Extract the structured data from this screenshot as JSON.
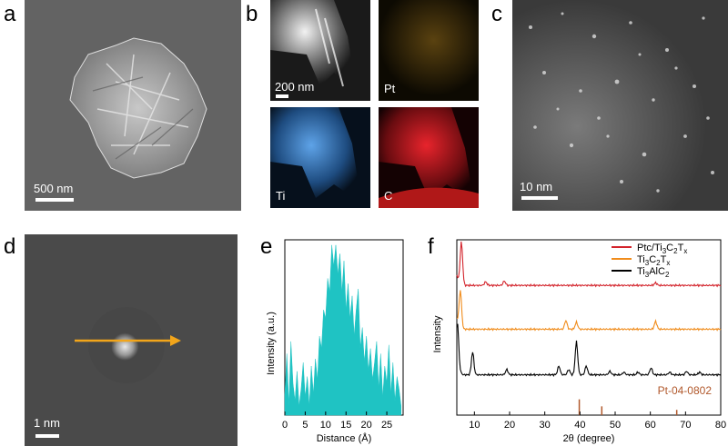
{
  "panels": {
    "a": {
      "letter": "a",
      "scale_label": "500 nm"
    },
    "b": {
      "letter": "b",
      "scale_label": "200 nm",
      "maps": [
        "Pt",
        "Ti",
        "C"
      ]
    },
    "c": {
      "letter": "c",
      "scale_label": "10 nm"
    },
    "d": {
      "letter": "d",
      "scale_label": "1 nm"
    },
    "e": {
      "letter": "e"
    },
    "f": {
      "letter": "f"
    }
  },
  "colors": {
    "ptc": "#d3242c",
    "ti3c2": "#f08c1c",
    "ti3alc2": "#000000",
    "ref": "#b1582b",
    "profile": "#1fc3c3",
    "arrow": "#f2a51a"
  },
  "chart_data": [
    {
      "type": "area",
      "panel": "e",
      "xlabel": "Distance (Å)",
      "ylabel": "Intensity (a.u.)",
      "xlim": [
        0,
        29
      ],
      "xticks": [
        0,
        5,
        10,
        15,
        20,
        25
      ],
      "x": [
        0,
        0.5,
        1,
        1.5,
        2,
        2.5,
        3,
        3.5,
        4,
        4.5,
        5,
        5.5,
        6,
        6.5,
        7,
        7.5,
        8,
        8.5,
        9,
        9.5,
        10,
        10.5,
        11,
        11.5,
        12,
        12.5,
        13,
        13.5,
        14,
        14.5,
        15,
        15.5,
        16,
        16.5,
        17,
        17.5,
        18,
        18.5,
        19,
        19.5,
        20,
        20.5,
        21,
        21.5,
        22,
        22.5,
        23,
        23.5,
        24,
        24.5,
        25,
        25.5,
        26,
        26.5,
        27,
        27.5,
        28,
        28.5
      ],
      "y": [
        0.12,
        0.35,
        0.05,
        0.42,
        0.18,
        0.08,
        0.25,
        0.05,
        0.15,
        0.3,
        0.1,
        0.22,
        0.05,
        0.28,
        0.12,
        0.32,
        0.2,
        0.45,
        0.38,
        0.6,
        0.55,
        0.78,
        0.7,
        0.97,
        0.85,
        0.97,
        0.8,
        0.92,
        0.7,
        0.88,
        0.6,
        0.75,
        0.55,
        0.68,
        0.45,
        0.6,
        0.72,
        0.38,
        0.5,
        0.3,
        0.45,
        0.25,
        0.38,
        0.2,
        0.3,
        0.42,
        0.15,
        0.35,
        0.1,
        0.28,
        0.18,
        0.4,
        0.12,
        0.3,
        0.08,
        0.22,
        0.15,
        0.05
      ]
    },
    {
      "type": "line",
      "panel": "f",
      "xlabel": "2θ (degree)",
      "ylabel": "Intensity",
      "xlim": [
        5,
        80
      ],
      "xticks": [
        10,
        20,
        30,
        40,
        50,
        60,
        70,
        80
      ],
      "legend_position": "top-right",
      "legend": [
        {
          "base": "Ptc/Ti",
          "sub1": "3",
          "mid": "C",
          "sub2": "2",
          "mid2": "T",
          "sub3": "x",
          "color_key": "ptc"
        },
        {
          "base": "Ti",
          "sub1": "3",
          "mid": "C",
          "sub2": "2",
          "mid2": "T",
          "sub3": "x",
          "color_key": "ti3c2"
        },
        {
          "base": "Ti",
          "sub1": "3",
          "mid": "AlC",
          "sub2": "2",
          "mid2": "",
          "sub3": "",
          "color_key": "ti3alc2"
        }
      ],
      "series": [
        {
          "color_key": "ptc",
          "baseline": 0.74,
          "peaks": [
            [
              6.3,
              0.98
            ],
            [
              13.2,
              0.76
            ],
            [
              18.5,
              0.765
            ],
            [
              61.5,
              0.755
            ]
          ]
        },
        {
          "color_key": "ti3c2",
          "baseline": 0.49,
          "peaks": [
            [
              6.0,
              0.7
            ],
            [
              36.0,
              0.54
            ],
            [
              39.0,
              0.53
            ],
            [
              61.5,
              0.535
            ]
          ]
        },
        {
          "color_key": "ti3alc2",
          "baseline": 0.23,
          "peaks": [
            [
              5.2,
              0.48
            ],
            [
              9.5,
              0.36
            ],
            [
              19.2,
              0.26
            ],
            [
              34.0,
              0.28
            ],
            [
              36.8,
              0.26
            ],
            [
              39.0,
              0.42
            ],
            [
              41.8,
              0.28
            ],
            [
              48.5,
              0.25
            ],
            [
              52.5,
              0.245
            ],
            [
              56.5,
              0.245
            ],
            [
              60.2,
              0.27
            ],
            [
              65.5,
              0.245
            ],
            [
              70.3,
              0.25
            ],
            [
              74.0,
              0.245
            ]
          ]
        }
      ],
      "reference": {
        "label": "Pt-04-0802",
        "lines": [
          [
            39.8,
            0.09
          ],
          [
            46.2,
            0.05
          ],
          [
            67.5,
            0.03
          ]
        ]
      }
    }
  ]
}
